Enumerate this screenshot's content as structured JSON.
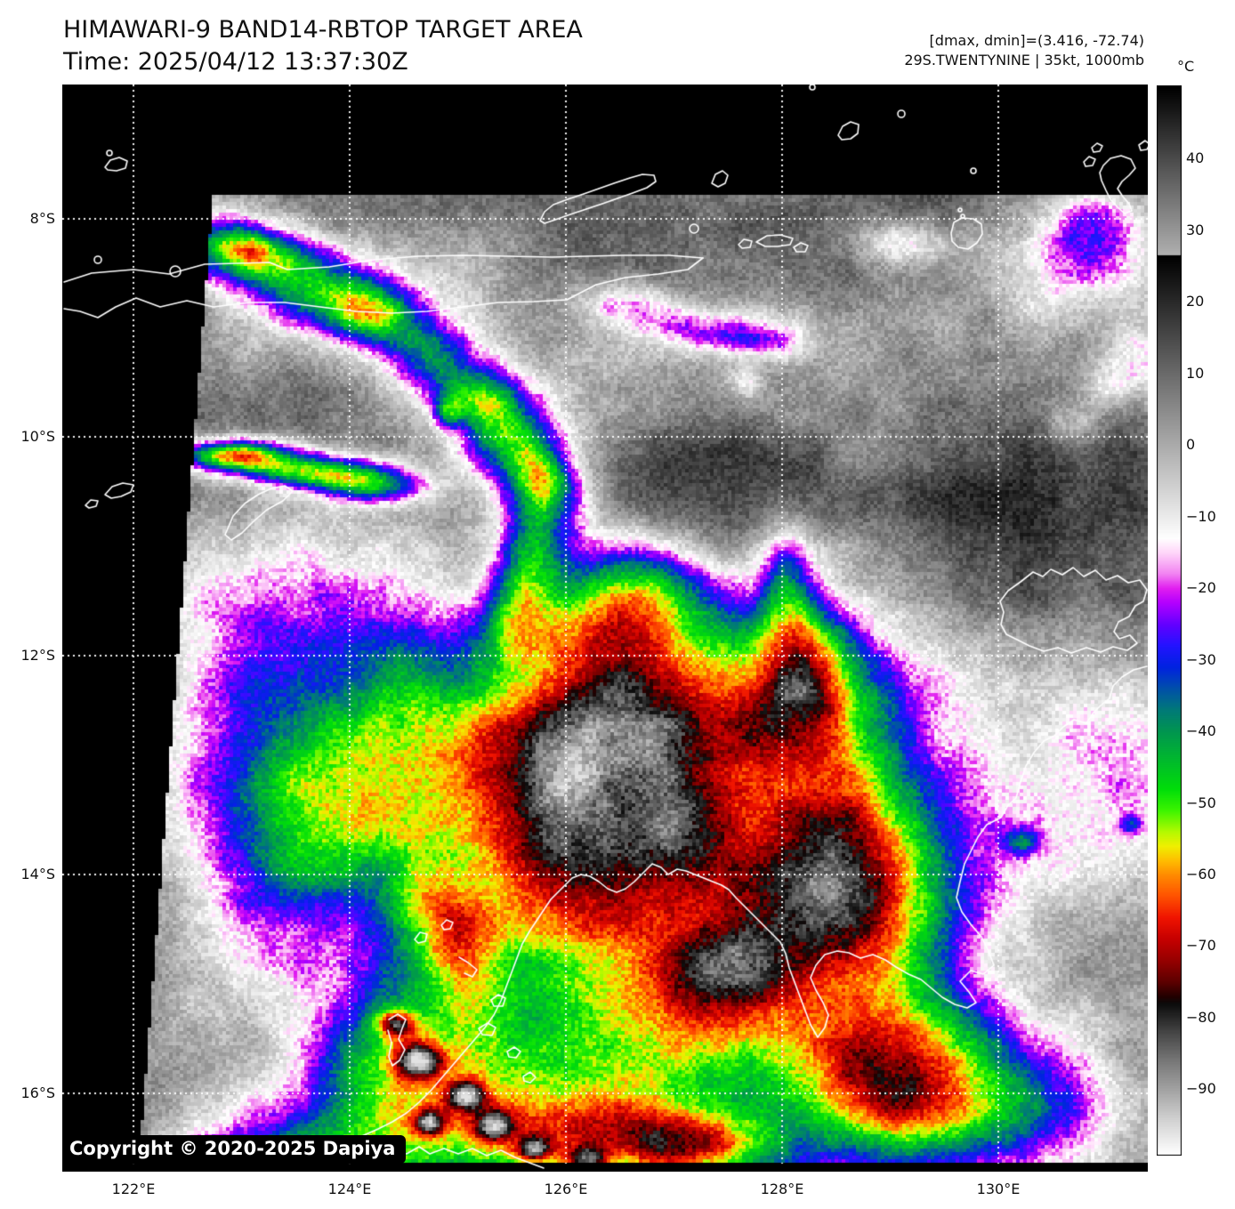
{
  "header": {
    "title": "HIMAWARI-9 BAND14-RBTOP TARGET AREA",
    "time": "Time: 2025/04/12 13:37:30Z"
  },
  "annotations": {
    "dmax_dmin": "[dmax, dmin]=(3.416, -72.74)",
    "storm": "29S.TWENTYNINE | 35kt, 1000mb"
  },
  "colorbar": {
    "unit": "°C",
    "ticks": [
      "40",
      "30",
      "20",
      "10",
      "0",
      "−10",
      "−20",
      "−30",
      "−40",
      "−50",
      "−60",
      "−70",
      "−80",
      "−90"
    ],
    "tick_values": [
      40,
      30,
      20,
      10,
      0,
      -10,
      -20,
      -30,
      -40,
      -50,
      -60,
      -70,
      -80,
      -90
    ]
  },
  "axes": {
    "lat_labels": [
      "8°S",
      "10°S",
      "12°S",
      "14°S",
      "16°S"
    ],
    "lon_labels": [
      "122°E",
      "124°E",
      "126°E",
      "128°E",
      "130°E"
    ]
  },
  "footer": {
    "copyright": "Copyright © 2020-2025 Dapiya"
  }
}
